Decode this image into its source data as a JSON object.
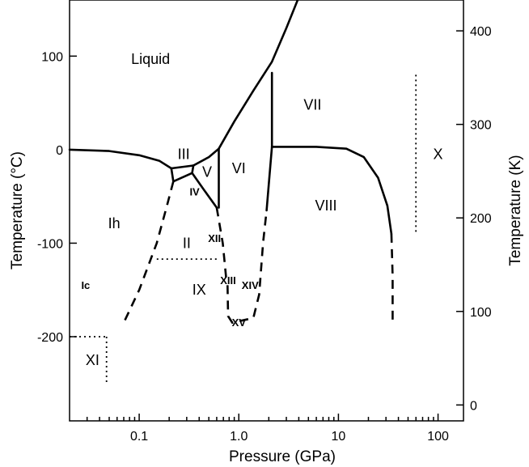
{
  "chart_data": {
    "type": "phase-diagram",
    "xlabel": "Pressure (GPa)",
    "ylabel_left": "Temperature (°C)",
    "ylabel_right": "Temperature (K)",
    "x_scale": "log",
    "xlim": [
      0.02,
      180
    ],
    "ylim_celsius": [
      -290,
      160
    ],
    "x_ticks": [
      {
        "value": 0.1,
        "label": "0.1"
      },
      {
        "value": 1,
        "label": "1.0"
      },
      {
        "value": 10,
        "label": "10"
      },
      {
        "value": 100,
        "label": "100"
      }
    ],
    "y_left_ticks": [
      {
        "value": 100,
        "label": "100"
      },
      {
        "value": 0,
        "label": "0"
      },
      {
        "value": -100,
        "label": "-100"
      },
      {
        "value": -200,
        "label": "-200"
      }
    ],
    "y_right_ticks": [
      {
        "value": 400,
        "label": "400"
      },
      {
        "value": 300,
        "label": "300"
      },
      {
        "value": 200,
        "label": "200"
      },
      {
        "value": 100,
        "label": "100"
      },
      {
        "value": 0,
        "label": "0"
      }
    ],
    "phases": [
      {
        "name": "Liquid",
        "p": 0.13,
        "t": 97,
        "size": "large"
      },
      {
        "name": "VII",
        "p": 5.5,
        "t": 48,
        "size": "large"
      },
      {
        "name": "III",
        "p": 0.28,
        "t": -5,
        "size": "large"
      },
      {
        "name": "V",
        "p": 0.48,
        "t": -24,
        "size": "large"
      },
      {
        "name": "VI",
        "p": 1.0,
        "t": -20,
        "size": "large"
      },
      {
        "name": "X",
        "p": 100,
        "t": -5,
        "size": "large"
      },
      {
        "name": "IV",
        "p": 0.36,
        "t": -45,
        "size": "small"
      },
      {
        "name": "VIII",
        "p": 7.5,
        "t": -60,
        "size": "large"
      },
      {
        "name": "Ih",
        "p": 0.056,
        "t": -79,
        "size": "large"
      },
      {
        "name": "II",
        "p": 0.3,
        "t": -100,
        "size": "large"
      },
      {
        "name": "XII",
        "p": 0.57,
        "t": -95,
        "size": "small"
      },
      {
        "name": "Ic",
        "p": 0.029,
        "t": -145,
        "size": "small"
      },
      {
        "name": "IX",
        "p": 0.4,
        "t": -150,
        "size": "large"
      },
      {
        "name": "XIII",
        "p": 0.78,
        "t": -140,
        "size": "small"
      },
      {
        "name": "XIV",
        "p": 1.3,
        "t": -145,
        "size": "small"
      },
      {
        "name": "XV",
        "p": 1.0,
        "t": -185,
        "size": "small"
      },
      {
        "name": "XI",
        "p": 0.034,
        "t": -225,
        "size": "large"
      }
    ],
    "solid_boundaries": [
      {
        "points": [
          [
            0.02,
            0
          ],
          [
            0.05,
            -1.5
          ],
          [
            0.1,
            -6
          ],
          [
            0.16,
            -12
          ],
          [
            0.21,
            -20
          ]
        ]
      },
      {
        "points": [
          [
            0.21,
            -20
          ],
          [
            0.35,
            -17
          ]
        ]
      },
      {
        "points": [
          [
            0.35,
            -17
          ],
          [
            0.5,
            -8
          ],
          [
            0.63,
            1
          ]
        ]
      },
      {
        "points": [
          [
            0.63,
            1
          ],
          [
            0.9,
            30
          ],
          [
            1.4,
            63
          ],
          [
            2.15,
            94
          ],
          [
            3.0,
            130
          ],
          [
            3.9,
            160
          ]
        ]
      },
      {
        "points": [
          [
            0.21,
            -20
          ],
          [
            0.22,
            -34
          ]
        ]
      },
      {
        "points": [
          [
            0.22,
            -34
          ],
          [
            0.34,
            -25
          ],
          [
            0.35,
            -17
          ]
        ]
      },
      {
        "points": [
          [
            0.34,
            -25
          ],
          [
            0.44,
            -42
          ],
          [
            0.6,
            -62
          ]
        ]
      },
      {
        "points": [
          [
            0.63,
            1
          ],
          [
            0.63,
            -62
          ]
        ]
      },
      {
        "points": [
          [
            2.15,
            82
          ],
          [
            2.15,
            3
          ]
        ]
      },
      {
        "points": [
          [
            2.15,
            3
          ],
          [
            6,
            3
          ],
          [
            12,
            1
          ],
          [
            18,
            -8
          ],
          [
            25,
            -30
          ],
          [
            31,
            -60
          ],
          [
            34,
            -90
          ]
        ]
      },
      {
        "points": [
          [
            2.15,
            3
          ],
          [
            2.0,
            -37
          ],
          [
            1.9,
            -65
          ]
        ]
      }
    ],
    "metastable_boundaries": [
      {
        "points": [
          [
            0.22,
            -34
          ],
          [
            0.19,
            -60
          ],
          [
            0.15,
            -100
          ],
          [
            0.1,
            -150
          ],
          [
            0.07,
            -185
          ]
        ]
      },
      {
        "points": [
          [
            0.6,
            -62
          ],
          [
            0.69,
            -100
          ],
          [
            0.75,
            -140
          ]
        ]
      },
      {
        "points": [
          [
            0.77,
            -145
          ],
          [
            0.78,
            -178
          ],
          [
            0.86,
            -185
          ],
          [
            1.4,
            -180
          ],
          [
            1.6,
            -155
          ],
          [
            1.75,
            -100
          ],
          [
            1.9,
            -65
          ]
        ]
      },
      {
        "points": [
          [
            34,
            -90
          ],
          [
            35,
            -135
          ],
          [
            35,
            -185
          ]
        ]
      }
    ],
    "dotted_boundaries": [
      {
        "points": [
          [
            0.15,
            -117
          ],
          [
            0.6,
            -117
          ]
        ]
      },
      {
        "points": [
          [
            0.02,
            -200
          ],
          [
            0.047,
            -200
          ]
        ]
      },
      {
        "points": [
          [
            0.047,
            -200
          ],
          [
            0.047,
            -250
          ]
        ]
      },
      {
        "points": [
          [
            60,
            80
          ],
          [
            60,
            -90
          ]
        ]
      }
    ]
  }
}
